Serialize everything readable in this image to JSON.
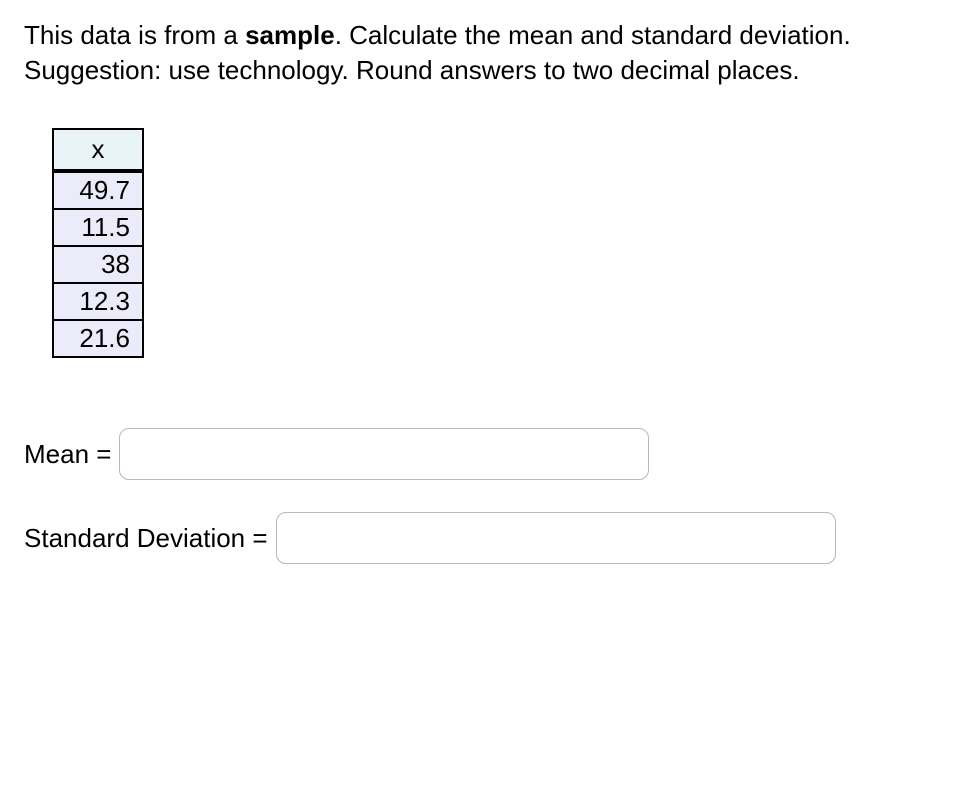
{
  "question": {
    "prefix": "This data is from a ",
    "bold": "sample",
    "suffix": ". Calculate the mean and standard deviation. Suggestion: use technology. Round answers to two decimal places."
  },
  "table": {
    "header": "x",
    "rows": [
      "49.7",
      "11.5",
      "38",
      "12.3",
      "21.6"
    ],
    "header_bg": "#e8f4f8",
    "cell_bg": "#ecebfa",
    "border_color": "#000000"
  },
  "answers": {
    "mean": {
      "label": "Mean = ",
      "value": ""
    },
    "sd": {
      "label": "Standard Deviation = ",
      "value": ""
    }
  },
  "input_style": {
    "border_color": "#b8b8b8",
    "border_radius": 10
  }
}
